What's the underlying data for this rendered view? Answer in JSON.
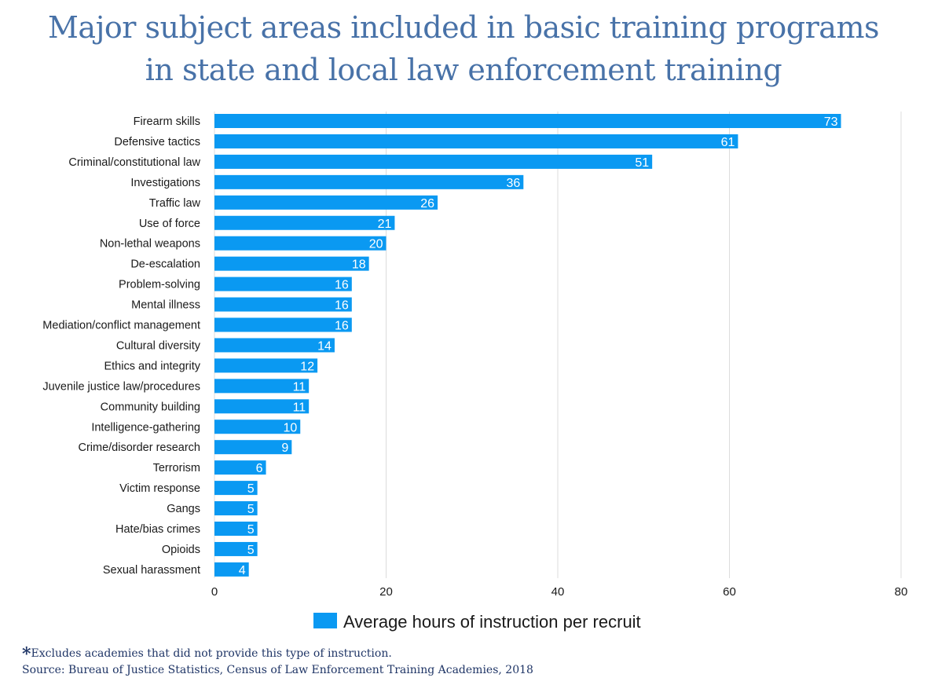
{
  "title_lines": [
    "Major subject areas included in basic training programs",
    "in state and local law enforcement training"
  ],
  "footnote": {
    "marker": "*",
    "text": "Excludes academies that did not provide this type of instruction."
  },
  "source": "Source: Bureau of Justice Statistics, Census of Law Enforcement Training Academies, 2018",
  "colors": {
    "bar": "#0a99f2",
    "title": "#4872a8",
    "grid": "#dcdcdc",
    "text": "#1a1a1a"
  },
  "chart_data": {
    "type": "bar",
    "orientation": "horizontal",
    "categories": [
      "Firearm skills",
      "Defensive tactics",
      "Criminal/constitutional law",
      "Investigations",
      "Traffic law",
      "Use of force",
      "Non-lethal weapons",
      "De-escalation",
      "Problem-solving",
      "Mental illness",
      "Mediation/conflict management",
      "Cultural diversity",
      "Ethics and integrity",
      "Juvenile justice law/procedures",
      "Community building",
      "Intelligence-gathering",
      "Crime/disorder research",
      "Terrorism",
      "Victim response",
      "Gangs",
      "Hate/bias crimes",
      "Opioids",
      "Sexual harassment"
    ],
    "series": [
      {
        "name": "Average hours of instruction per recruit",
        "values": [
          73,
          61,
          51,
          36,
          26,
          21,
          20,
          18,
          16,
          16,
          16,
          14,
          12,
          11,
          11,
          10,
          9,
          6,
          5,
          5,
          5,
          5,
          4
        ]
      }
    ],
    "xlim": [
      0,
      80
    ],
    "xticks": [
      0,
      20,
      40,
      60,
      80
    ],
    "grid": true,
    "legend_position": "bottom-center",
    "data_labels": true
  }
}
